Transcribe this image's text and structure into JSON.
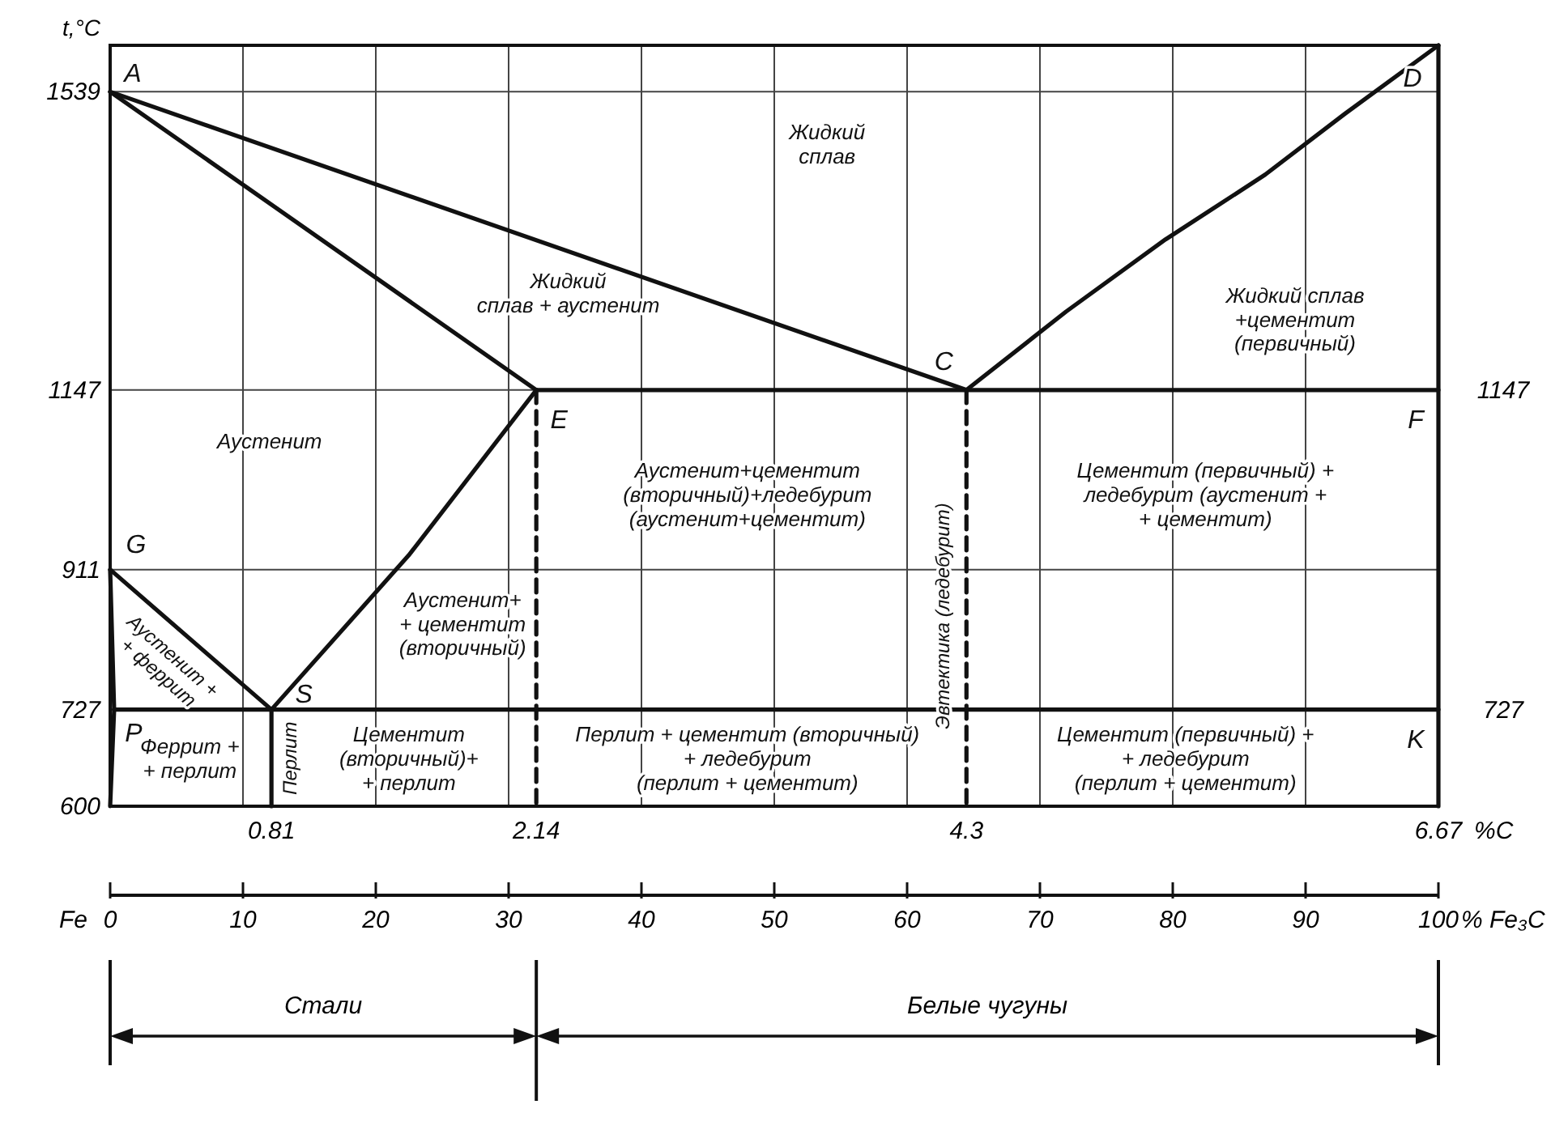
{
  "chart_data": {
    "type": "line",
    "ylabel": "t,°C",
    "xlabel": "%C",
    "x2label": "% Fe₃C",
    "xlim": [
      0,
      6.67
    ],
    "xticks": [
      0.81,
      2.14,
      4.3,
      6.67
    ],
    "x2lim": [
      0,
      100
    ],
    "x2ticks": [
      0,
      10,
      20,
      30,
      40,
      50,
      60,
      70,
      80,
      90,
      100
    ],
    "ylim": [
      600,
      1600
    ],
    "yticks": [
      600,
      727,
      911,
      1147,
      1539
    ],
    "y2lim": [
      600,
      1600
    ],
    "y2ticks": [
      727,
      1147
    ],
    "grid": true,
    "marker": "none",
    "line_style": "solid",
    "series": [
      {
        "color": "#111111",
        "x": [
          0,
          4.3
        ],
        "values": [
          1539,
          1147
        ]
      },
      {
        "color": "#111111",
        "x": [
          4.3,
          4.8,
          5.3,
          5.8,
          6.2,
          6.67
        ],
        "values": [
          1147,
          1250,
          1345,
          1430,
          1510,
          1600
        ]
      },
      {
        "color": "#111111",
        "x": [
          0,
          2.14
        ],
        "values": [
          1539,
          1147
        ]
      },
      {
        "color": "#111111",
        "x": [
          2.14,
          6.67
        ],
        "values": [
          1147,
          1147
        ]
      },
      {
        "color": "#111111",
        "x": [
          2.14,
          1.5,
          0.81
        ],
        "values": [
          1147,
          930,
          727
        ]
      },
      {
        "color": "#111111",
        "x": [
          0,
          0.81
        ],
        "values": [
          911,
          727
        ]
      },
      {
        "color": "#111111",
        "x": [
          0,
          0.02,
          0
        ],
        "values": [
          911,
          727,
          600
        ]
      },
      {
        "color": "#111111",
        "x": [
          0.02,
          6.67
        ],
        "values": [
          727,
          727
        ]
      },
      {
        "color": "#111111",
        "x": [
          2.14,
          2.14
        ],
        "values": [
          1147,
          600
        ],
        "line_style": "dashed"
      },
      {
        "color": "#111111",
        "x": [
          4.3,
          4.3
        ],
        "values": [
          1147,
          600
        ],
        "line_style": "dashed"
      },
      {
        "color": "#111111",
        "x": [
          6.67,
          6.67
        ],
        "values": [
          1600,
          600
        ]
      },
      {
        "color": "#111111",
        "x": [
          0.81,
          0.81
        ],
        "values": [
          727,
          600
        ]
      }
    ],
    "annotations": [
      {
        "text": "A",
        "x": 0,
        "y": 1539
      },
      {
        "text": "C",
        "x": 4.3,
        "y": 1147
      },
      {
        "text": "D",
        "x": 6.67,
        "y": 1600
      },
      {
        "text": "E",
        "x": 2.14,
        "y": 1147
      },
      {
        "text": "F",
        "x": 6.67,
        "y": 1147
      },
      {
        "text": "G",
        "x": 0,
        "y": 911
      },
      {
        "text": "S",
        "x": 0.81,
        "y": 727
      },
      {
        "text": "P",
        "x": 0.02,
        "y": 727
      },
      {
        "text": "K",
        "x": 6.67,
        "y": 727
      },
      "Жидкий\nсплав",
      "Жидкий\nсплав + аустенит",
      "Аустенит",
      "Жидкий сплав\n+цементит\n(первичный)",
      "Аустенит+цементит\n(вторичный)+ледебурит\n(аустенит+цементит)",
      "Цементит (первичный) +\nледебурит (аустенит +\n+ цементит)",
      "Аустенит +\n+ феррит",
      "Аустенит+\n+ цементит\n(вторичный)",
      "Феррит +\n+ перлит",
      "Перлит",
      "Цементит\n(вторичный)+\n+ перлит",
      "Перлит + цементит (вторичный)\n+ ледебурит\n(перлит + цементит)",
      "Эвтектика (ледебурит)",
      "Цементит (первичный) +\n+ ледебурит\n(перлит + цементит)",
      "Fe",
      "Стали",
      "Белые чугуны"
    ]
  }
}
